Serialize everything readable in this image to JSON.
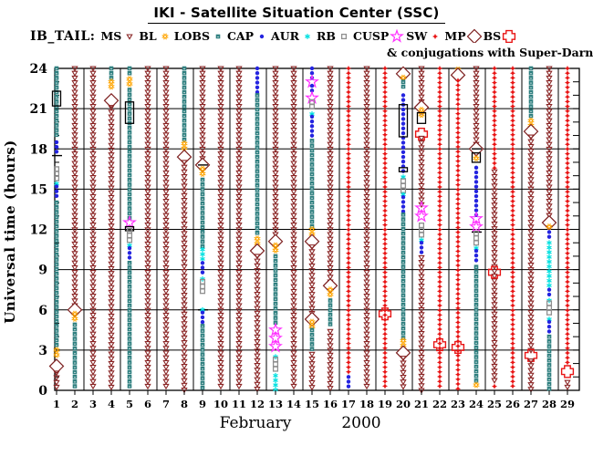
{
  "header": {
    "title": "IKI - Satellite Situation Center (SSC)",
    "note": "& conjugations with Super-Darn r"
  },
  "legend": {
    "label": "IB_TAIL:",
    "items": [
      {
        "label": "MS",
        "sym": "MS"
      },
      {
        "label": "BL",
        "sym": "BL"
      },
      {
        "label": "LOBS",
        "sym": "LOBS"
      },
      {
        "label": "CAP",
        "sym": "CAP"
      },
      {
        "label": "AUR",
        "sym": "AUR"
      },
      {
        "label": "RB",
        "sym": "RB"
      },
      {
        "label": "CUSP",
        "sym": "CUSP"
      },
      {
        "label": "SW",
        "sym": "SW"
      },
      {
        "label": "MP",
        "sym": "MP"
      },
      {
        "label": "BS",
        "sym": "BS"
      }
    ]
  },
  "chart_data": {
    "type": "scatter",
    "title": "IKI - Satellite Situation Center (SSC)",
    "xlabel_month": "February",
    "xlabel_year": "2000",
    "ylabel": "Universal time (hours)",
    "ylim": [
      0,
      24
    ],
    "y_ticks": [
      0,
      3,
      6,
      9,
      12,
      15,
      18,
      21,
      24
    ],
    "grid": "horizontal every 3h, vertical every 2 days",
    "legend_position": "top",
    "colors": {
      "MS": "#8a2525",
      "BL": "#ffa500",
      "LOBS": "#2e7f7f",
      "CAP": "#2424e0",
      "AUR": "#00e0e0",
      "RB": "#8f8f8f",
      "CUSP": "#ff30ff",
      "SW": "#e81414",
      "MP": "#7d2020",
      "BS": "#e81414",
      "BOX": "#000000",
      "TICK": "#000000"
    },
    "days": [
      {
        "day": 1,
        "segments": [
          {
            "s": "LOBS",
            "a": 24,
            "b": 18.7
          },
          {
            "s": "BOX",
            "a": 22.3,
            "b": 21.2
          },
          {
            "s": "CAP",
            "a": 18.5,
            "b": 17.7
          },
          {
            "s": "TICK",
            "at": 17.5
          },
          {
            "s": "RB",
            "a": 16.5,
            "b": 15.6
          },
          {
            "s": "AUR",
            "at": 15.4
          },
          {
            "s": "CAP",
            "a": 15.2,
            "b": 14.2
          },
          {
            "s": "LOBS",
            "a": 14,
            "b": 3.2
          },
          {
            "s": "BL",
            "a": 3.0,
            "b": 2.4
          },
          {
            "s": "MP",
            "at": 1.8
          },
          {
            "s": "MS",
            "a": 1.3,
            "b": 0
          }
        ]
      },
      {
        "day": 2,
        "segments": [
          {
            "s": "MS",
            "a": 24,
            "b": 6.3
          },
          {
            "s": "MP",
            "at": 6.0
          },
          {
            "s": "BL",
            "a": 5.7,
            "b": 5.1
          },
          {
            "s": "LOBS",
            "a": 4.9,
            "b": 0
          }
        ]
      },
      {
        "day": 3,
        "segments": [
          {
            "s": "MS",
            "a": 24,
            "b": 0
          }
        ]
      },
      {
        "day": 4,
        "segments": [
          {
            "s": "LOBS",
            "a": 24,
            "b": 23.2
          },
          {
            "s": "BL",
            "a": 23.0,
            "b": 22.4
          },
          {
            "s": "MP",
            "at": 21.6
          },
          {
            "s": "MS",
            "a": 21.1,
            "b": 0
          }
        ]
      },
      {
        "day": 5,
        "segments": [
          {
            "s": "LOBS",
            "a": 24,
            "b": 23.4
          },
          {
            "s": "BL",
            "a": 23.2,
            "b": 22.6
          },
          {
            "s": "LOBS",
            "a": 22.4,
            "b": 12.7
          },
          {
            "s": "BOX",
            "a": 21.5,
            "b": 19.9
          },
          {
            "s": "CUSP",
            "at": 12.5
          },
          {
            "s": "BOX",
            "a": 12.2,
            "b": 11.9
          },
          {
            "s": "RB",
            "a": 11.9,
            "b": 11.0
          },
          {
            "s": "AUR",
            "at": 10.8
          },
          {
            "s": "CAP",
            "a": 10.6,
            "b": 9.7
          },
          {
            "s": "LOBS",
            "a": 9.5,
            "b": 0
          }
        ]
      },
      {
        "day": 6,
        "segments": [
          {
            "s": "MS",
            "a": 24,
            "b": 0
          }
        ]
      },
      {
        "day": 7,
        "segments": [
          {
            "s": "MS",
            "a": 24,
            "b": 0
          }
        ]
      },
      {
        "day": 8,
        "segments": [
          {
            "s": "LOBS",
            "a": 24,
            "b": 18.6
          },
          {
            "s": "BL",
            "a": 18.4,
            "b": 17.8
          },
          {
            "s": "MP",
            "at": 17.4
          },
          {
            "s": "MS",
            "a": 17.0,
            "b": 0
          }
        ]
      },
      {
        "day": 9,
        "segments": [
          {
            "s": "MS",
            "a": 24,
            "b": 17.1
          },
          {
            "s": "MP",
            "at": 16.8
          },
          {
            "s": "TICK",
            "at": 16.8
          },
          {
            "s": "BL",
            "a": 16.5,
            "b": 15.9
          },
          {
            "s": "LOBS",
            "a": 15.7,
            "b": 10.7
          },
          {
            "s": "AUR",
            "a": 10.5,
            "b": 9.7
          },
          {
            "s": "CAP",
            "a": 9.5,
            "b": 8.5
          },
          {
            "s": "AUR",
            "at": 8.3
          },
          {
            "s": "RB",
            "a": 8.1,
            "b": 7.1
          },
          {
            "s": "TICK",
            "at": 6.0
          },
          {
            "s": "AUR",
            "at": 6.0
          },
          {
            "s": "CAP",
            "a": 5.8,
            "b": 5.0
          },
          {
            "s": "LOBS",
            "a": 4.8,
            "b": 0
          }
        ]
      },
      {
        "day": 10,
        "segments": [
          {
            "s": "MS",
            "a": 24,
            "b": 0
          }
        ]
      },
      {
        "day": 11,
        "segments": [
          {
            "s": "MS",
            "a": 24,
            "b": 0
          }
        ]
      },
      {
        "day": 12,
        "segments": [
          {
            "s": "CAP",
            "a": 24,
            "b": 22.2
          },
          {
            "s": "LOBS",
            "a": 22.0,
            "b": 11.5
          },
          {
            "s": "BL",
            "a": 11.3,
            "b": 10.7
          },
          {
            "s": "MP",
            "at": 10.4
          },
          {
            "s": "MS",
            "a": 10.0,
            "b": 0
          }
        ]
      },
      {
        "day": 13,
        "segments": [
          {
            "s": "MS",
            "a": 24,
            "b": 11.4
          },
          {
            "s": "MP",
            "at": 11.1
          },
          {
            "s": "BL",
            "a": 10.8,
            "b": 10.2
          },
          {
            "s": "LOBS",
            "a": 10.0,
            "b": 4.7
          },
          {
            "s": "CUSP",
            "a": 4.5,
            "b": 2.7
          },
          {
            "s": "AUR",
            "at": 2.5
          },
          {
            "s": "RB",
            "a": 2.3,
            "b": 1.3
          },
          {
            "s": "AUR",
            "a": 1.1,
            "b": 0
          }
        ]
      },
      {
        "day": 14,
        "segments": [
          {
            "s": "MS",
            "a": 24,
            "b": 0
          }
        ]
      },
      {
        "day": 15,
        "segments": [
          {
            "s": "CAP",
            "a": 24,
            "b": 23.2
          },
          {
            "s": "CUSP",
            "at": 23.0
          },
          {
            "s": "CAP",
            "a": 22.7,
            "b": 22.0
          },
          {
            "s": "CUSP",
            "at": 21.8
          },
          {
            "s": "RB",
            "a": 21.5,
            "b": 20.8
          },
          {
            "s": "AUR",
            "at": 20.6
          },
          {
            "s": "CAP",
            "a": 20.4,
            "b": 18.8
          },
          {
            "s": "LOBS",
            "a": 18.6,
            "b": 12.2
          },
          {
            "s": "BL",
            "a": 12.0,
            "b": 11.4
          },
          {
            "s": "MP",
            "at": 11.1
          },
          {
            "s": "MS",
            "a": 10.7,
            "b": 5.5
          },
          {
            "s": "MP",
            "at": 5.3
          },
          {
            "s": "BL",
            "a": 5.1,
            "b": 4.7
          },
          {
            "s": "LOBS",
            "a": 4.5,
            "b": 2.9
          },
          {
            "s": "MS",
            "a": 2.7,
            "b": 0
          }
        ]
      },
      {
        "day": 16,
        "segments": [
          {
            "s": "MS",
            "a": 24,
            "b": 8.0
          },
          {
            "s": "MP",
            "at": 7.8
          },
          {
            "s": "BL",
            "a": 7.5,
            "b": 6.9
          },
          {
            "s": "LOBS",
            "a": 6.7,
            "b": 4.6
          },
          {
            "s": "MS",
            "a": 4.4,
            "b": 0
          }
        ]
      },
      {
        "day": 17,
        "segments": [
          {
            "s": "SW",
            "a": 24,
            "b": 1.2
          },
          {
            "s": "CAP",
            "a": 1.0,
            "b": 0
          }
        ]
      },
      {
        "day": 18,
        "segments": [
          {
            "s": "MS",
            "a": 24,
            "b": 0
          }
        ]
      },
      {
        "day": 19,
        "segments": [
          {
            "s": "SW",
            "a": 24,
            "b": 0
          },
          {
            "s": "BS",
            "at": 5.7
          }
        ]
      },
      {
        "day": 20,
        "segments": [
          {
            "s": "MP",
            "at": 23.6
          },
          {
            "s": "BL",
            "at": 23.3
          },
          {
            "s": "LOBS",
            "a": 23.0,
            "b": 22.3
          },
          {
            "s": "CAP",
            "a": 22.0,
            "b": 16.3
          },
          {
            "s": "BOX",
            "a": 21.3,
            "b": 18.9
          },
          {
            "s": "BOX",
            "a": 16.6,
            "b": 16.3
          },
          {
            "s": "AUR",
            "at": 15.9
          },
          {
            "s": "RB",
            "a": 15.6,
            "b": 14.8
          },
          {
            "s": "AUR",
            "at": 14.6
          },
          {
            "s": "CAP",
            "a": 14.4,
            "b": 13.3
          },
          {
            "s": "LOBS",
            "a": 13.1,
            "b": 3.9
          },
          {
            "s": "BL",
            "a": 3.7,
            "b": 3.1
          },
          {
            "s": "MP",
            "at": 2.8
          },
          {
            "s": "MS",
            "a": 2.4,
            "b": 0
          }
        ]
      },
      {
        "day": 21,
        "segments": [
          {
            "s": "MS",
            "a": 24,
            "b": 21.3
          },
          {
            "s": "MP",
            "at": 21.1
          },
          {
            "s": "BL",
            "a": 20.9,
            "b": 20.3
          },
          {
            "s": "BOX",
            "a": 20.7,
            "b": 19.9
          },
          {
            "s": "BS",
            "at": 19.1
          },
          {
            "s": "MS",
            "a": 18.8,
            "b": 13.8
          },
          {
            "s": "CUSP",
            "a": 13.6,
            "b": 12.6
          },
          {
            "s": "RB",
            "a": 12.3,
            "b": 11.4
          },
          {
            "s": "AUR",
            "at": 11.2
          },
          {
            "s": "CAP",
            "a": 11.0,
            "b": 10.2
          },
          {
            "s": "MS",
            "a": 9.9,
            "b": 0
          }
        ]
      },
      {
        "day": 22,
        "segments": [
          {
            "s": "SW",
            "a": 24,
            "b": 0
          },
          {
            "s": "BS",
            "at": 3.4
          }
        ]
      },
      {
        "day": 23,
        "segments": [
          {
            "s": "BL",
            "at": 23.9
          },
          {
            "s": "MP",
            "at": 23.5
          },
          {
            "s": "SW",
            "a": 23.1,
            "b": 0
          },
          {
            "s": "BS",
            "at": 3.2
          }
        ]
      },
      {
        "day": 24,
        "segments": [
          {
            "s": "MS",
            "a": 24,
            "b": 18.3
          },
          {
            "s": "MP",
            "at": 18.0
          },
          {
            "s": "TICK",
            "at": 18.0
          },
          {
            "s": "BOX",
            "a": 17.7,
            "b": 17.0
          },
          {
            "s": "BL",
            "at": 17.3
          },
          {
            "s": "CAP",
            "a": 16.6,
            "b": 13.0
          },
          {
            "s": "CUSP",
            "a": 12.8,
            "b": 11.9
          },
          {
            "s": "TICK",
            "at": 11.8
          },
          {
            "s": "RB",
            "a": 11.7,
            "b": 10.8
          },
          {
            "s": "AUR",
            "at": 10.6
          },
          {
            "s": "CAP",
            "a": 10.4,
            "b": 9.4
          },
          {
            "s": "LOBS",
            "a": 9.2,
            "b": 0.6
          },
          {
            "s": "BL",
            "a": 0.4,
            "b": 0.1
          }
        ]
      },
      {
        "day": 25,
        "segments": [
          {
            "s": "SW",
            "a": 24,
            "b": 16.5
          },
          {
            "s": "MS",
            "a": 16.3,
            "b": 0.5
          },
          {
            "s": "BS",
            "at": 8.8
          },
          {
            "s": "SW",
            "a": 0.3,
            "b": 0
          }
        ]
      },
      {
        "day": 26,
        "segments": [
          {
            "s": "SW",
            "a": 24,
            "b": 0
          }
        ]
      },
      {
        "day": 27,
        "segments": [
          {
            "s": "LOBS",
            "a": 24,
            "b": 20.3
          },
          {
            "s": "BL",
            "a": 20.1,
            "b": 19.7
          },
          {
            "s": "MP",
            "at": 19.3
          },
          {
            "s": "MS",
            "a": 18.9,
            "b": 2.9
          },
          {
            "s": "BS",
            "at": 2.6
          },
          {
            "s": "MS",
            "a": 2.2,
            "b": 0
          }
        ]
      },
      {
        "day": 28,
        "segments": [
          {
            "s": "MS",
            "a": 24,
            "b": 12.8
          },
          {
            "s": "MP",
            "at": 12.5
          },
          {
            "s": "BL",
            "a": 12.2,
            "b": 11.9
          },
          {
            "s": "CAP",
            "a": 11.8,
            "b": 11.2
          },
          {
            "s": "AUR",
            "a": 11.0,
            "b": 7.7
          },
          {
            "s": "CAP",
            "a": 7.5,
            "b": 6.9
          },
          {
            "s": "AUR",
            "at": 6.7
          },
          {
            "s": "RB",
            "a": 6.5,
            "b": 5.5
          },
          {
            "s": "AUR",
            "at": 5.3
          },
          {
            "s": "CAP",
            "a": 5.1,
            "b": 4.2
          },
          {
            "s": "LOBS",
            "a": 4.0,
            "b": 0
          }
        ]
      },
      {
        "day": 29,
        "segments": [
          {
            "s": "SW",
            "a": 24,
            "b": 1.9
          },
          {
            "s": "BS",
            "at": 1.4
          },
          {
            "s": "MS",
            "a": 0.6,
            "b": 0
          }
        ]
      }
    ]
  }
}
